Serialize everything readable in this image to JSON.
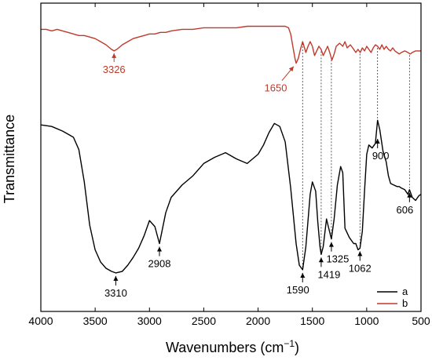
{
  "chart_data": {
    "type": "line",
    "xlabel": "Wavenumbers (cm",
    "xlabel_sup": "−1",
    "xlabel_end": ")",
    "ylabel": "Transmittance",
    "xlim": [
      4000,
      500
    ],
    "x_reversed": true,
    "x_ticks": [
      "4000",
      "3500",
      "3000",
      "2500",
      "2000",
      "1500",
      "1000",
      "500"
    ],
    "grid": false,
    "legend_position": "bottom-right",
    "series": [
      {
        "name": "a",
        "color": "#000000",
        "x": [
          4000,
          3900,
          3800,
          3750,
          3700,
          3650,
          3600,
          3550,
          3500,
          3450,
          3400,
          3350,
          3310,
          3250,
          3200,
          3150,
          3100,
          3050,
          3000,
          2950,
          2908,
          2850,
          2800,
          2700,
          2600,
          2500,
          2400,
          2300,
          2200,
          2100,
          2000,
          1950,
          1900,
          1850,
          1800,
          1750,
          1700,
          1650,
          1620,
          1590,
          1560,
          1520,
          1500,
          1470,
          1450,
          1430,
          1419,
          1400,
          1370,
          1350,
          1325,
          1300,
          1270,
          1240,
          1220,
          1200,
          1160,
          1120,
          1100,
          1080,
          1062,
          1040,
          1020,
          1000,
          980,
          950,
          920,
          900,
          880,
          850,
          820,
          800,
          780,
          750,
          720,
          700,
          680,
          650,
          620,
          606,
          580,
          550,
          520,
          500
        ],
        "y": [
          60.5,
          60,
          58.5,
          57.5,
          56.5,
          52.5,
          42,
          28,
          20,
          16,
          14,
          13,
          12.5,
          13,
          15,
          17.5,
          20.5,
          24.5,
          29.5,
          27.5,
          22,
          32,
          37,
          41,
          44,
          48,
          50,
          51.5,
          49.5,
          48,
          51,
          54,
          58,
          61,
          60,
          55,
          40,
          22,
          15,
          13.5,
          21,
          38,
          42,
          39,
          29,
          21,
          18.5,
          21,
          30,
          27,
          23.5,
          30,
          41,
          47,
          45,
          27,
          24,
          22,
          22,
          20,
          20.5,
          26,
          39,
          51,
          54,
          53,
          54.5,
          62,
          59,
          52,
          48.5,
          44,
          41.5,
          41,
          40.5,
          40.5,
          40,
          39.5,
          38,
          39.5,
          37,
          36,
          37.5,
          38
        ]
      },
      {
        "name": "b",
        "color": "#c0392b",
        "x": [
          4000,
          3950,
          3900,
          3850,
          3800,
          3750,
          3700,
          3650,
          3600,
          3550,
          3500,
          3450,
          3400,
          3350,
          3326,
          3300,
          3250,
          3200,
          3150,
          3100,
          3050,
          3000,
          2950,
          2900,
          2850,
          2800,
          2700,
          2600,
          2500,
          2400,
          2300,
          2200,
          2100,
          2000,
          1900,
          1850,
          1800,
          1750,
          1720,
          1700,
          1680,
          1660,
          1650,
          1630,
          1610,
          1590,
          1560,
          1540,
          1520,
          1500,
          1480,
          1460,
          1440,
          1420,
          1400,
          1380,
          1360,
          1340,
          1320,
          1300,
          1280,
          1250,
          1220,
          1200,
          1180,
          1150,
          1120,
          1100,
          1080,
          1060,
          1040,
          1020,
          1000,
          980,
          960,
          940,
          920,
          900,
          880,
          860,
          840,
          820,
          800,
          780,
          760,
          740,
          720,
          700,
          680,
          650,
          620,
          600,
          580,
          550,
          520,
          500
        ],
        "y": [
          91.5,
          91.5,
          91,
          91.5,
          91,
          90.5,
          90,
          89.5,
          89.5,
          89,
          88.5,
          87.5,
          86.5,
          85,
          84.5,
          85,
          86.5,
          87.5,
          88.5,
          89,
          89.5,
          90,
          90,
          90.5,
          90.5,
          91,
          91.5,
          91.5,
          92,
          92,
          92,
          92,
          92.5,
          92.5,
          92.5,
          92.5,
          92.5,
          92.5,
          92,
          90,
          86,
          82,
          80.5,
          82,
          85,
          87.5,
          84,
          86,
          87.5,
          86,
          83,
          84.5,
          86,
          85,
          83,
          84.5,
          86,
          84,
          81.5,
          83.5,
          86,
          87,
          86,
          87.5,
          85.5,
          86.5,
          85,
          84,
          85,
          84,
          85.5,
          84.5,
          86,
          85,
          84,
          85.5,
          86.5,
          86,
          85,
          86.5,
          85,
          86,
          85,
          84.5,
          85.5,
          84.5,
          84,
          83.5,
          84,
          84.5,
          84,
          83.5,
          84,
          84.5,
          84.5,
          84.5
        ]
      }
    ],
    "annotations": [
      {
        "label": "3326",
        "series": "b",
        "x": 3326,
        "y": 84.5,
        "dir": "up",
        "color": "#c0392b"
      },
      {
        "label": "1650",
        "series": "b",
        "x": 1650,
        "y": 80.5,
        "dir": "downleft",
        "color": "#c0392b"
      },
      {
        "label": "3310",
        "series": "a",
        "x": 3310,
        "y": 12.5,
        "dir": "down",
        "color": "#000000"
      },
      {
        "label": "2908",
        "series": "a",
        "x": 2908,
        "y": 22,
        "dir": "down",
        "color": "#000000"
      },
      {
        "label": "1590",
        "series": "a",
        "x": 1590,
        "y": 13.5,
        "dir": "down",
        "color": "#000000"
      },
      {
        "label": "1419",
        "series": "a",
        "x": 1419,
        "y": 18.5,
        "dir": "down",
        "color": "#000000"
      },
      {
        "label": "1325",
        "series": "a",
        "x": 1325,
        "y": 23.5,
        "dir": "down",
        "color": "#000000"
      },
      {
        "label": "1062",
        "series": "a",
        "x": 1062,
        "y": 20.5,
        "dir": "down",
        "color": "#000000"
      },
      {
        "label": "900",
        "series": "a",
        "x": 900,
        "y": 57,
        "dir": "down",
        "color": "#000000"
      },
      {
        "label": "606",
        "series": "a",
        "x": 606,
        "y": 39.5,
        "dir": "down",
        "color": "#000000"
      }
    ],
    "guide_lines": [
      1590,
      1419,
      1325,
      1062,
      900,
      606
    ]
  }
}
